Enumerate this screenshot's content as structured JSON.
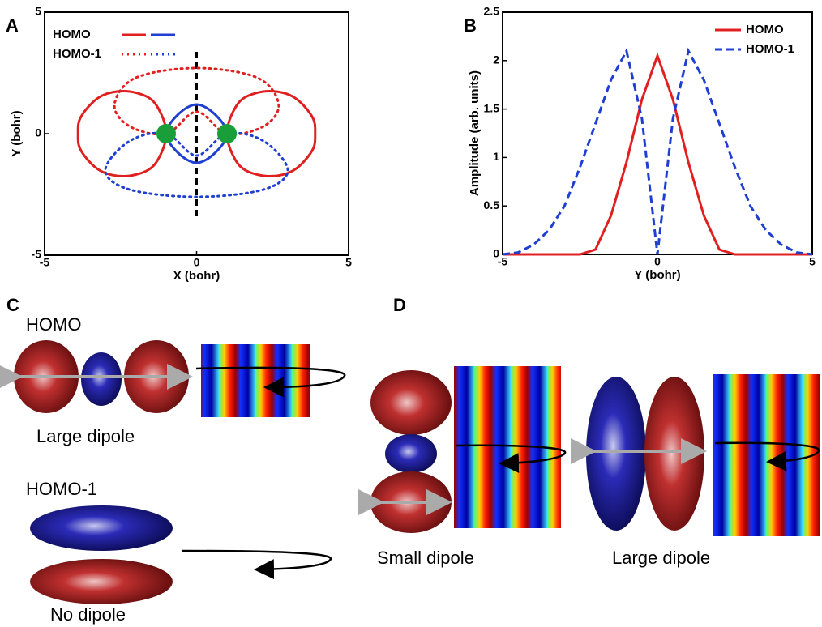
{
  "chart_data": [
    {
      "type": "contour",
      "panel": "A",
      "xlim": [
        -5,
        5
      ],
      "ylim": [
        -5,
        5
      ],
      "xticks": [
        -5,
        0,
        5
      ],
      "yticks": [
        -5,
        0,
        5
      ],
      "xlabel": "X (bohr)",
      "ylabel": "Y (bohr)",
      "series": [
        {
          "name": "HOMO",
          "style": "solid",
          "parts": [
            {
              "color": "#e02020",
              "x": [
                1,
                1.2,
                1.6,
                2.4,
                3.2,
                3.8,
                3.9,
                3.8,
                3.2,
                2.4,
                1.6,
                1.2,
                null,
                -1,
                -1.2,
                -1.6,
                -2.4,
                -3.2,
                -3.8,
                -3.9,
                -3.8,
                -3.2,
                -2.4,
                -1.6,
                -1.2
              ],
              "y": [
                0,
                0.9,
                1.5,
                1.75,
                1.5,
                0.7,
                0,
                -0.7,
                -1.5,
                -1.75,
                -1.5,
                -0.9,
                null,
                0,
                0.9,
                1.5,
                1.75,
                1.5,
                0.7,
                0,
                -0.7,
                -1.5,
                -1.75,
                -1.5,
                -0.9
              ]
            },
            {
              "color": "#1f3fd0",
              "x": [
                -1,
                -0.6,
                0,
                0.6,
                1,
                0.6,
                0,
                -0.6
              ],
              "y": [
                0,
                0.8,
                1.2,
                0.8,
                0,
                -0.8,
                -1.2,
                -0.8
              ]
            }
          ]
        },
        {
          "name": "HOMO-1",
          "style": "dotted",
          "parts": [
            {
              "color": "#e02020",
              "x": [
                -1,
                -2.2,
                -2.7,
                -2,
                0,
                2,
                2.7,
                2.2,
                1,
                0
              ],
              "y": [
                0,
                0.3,
                1.2,
                2.3,
                2.7,
                2.3,
                1.2,
                0.3,
                0,
                0.9
              ]
            },
            {
              "color": "#1f3fd0",
              "x": [
                -1,
                -2.2,
                -3,
                -2.2,
                0,
                2.2,
                3,
                2.2,
                1,
                0
              ],
              "y": [
                0,
                -0.3,
                -1.5,
                -2.3,
                -2.6,
                -2.3,
                -1.5,
                -0.3,
                0,
                -0.9
              ]
            }
          ]
        }
      ],
      "atoms": {
        "x": [
          -1,
          1
        ],
        "y": [
          0,
          0
        ],
        "color": "#1a9e3a"
      },
      "axis_line": {
        "x": [
          0,
          0
        ],
        "y": [
          -3.4,
          3.4
        ]
      }
    },
    {
      "type": "line",
      "panel": "B",
      "xlim": [
        -5,
        5
      ],
      "ylim": [
        0,
        2.5
      ],
      "xticks": [
        -5,
        0,
        5
      ],
      "yticks": [
        0,
        0.5,
        1,
        1.5,
        2,
        2.5
      ],
      "xlabel": "Y (bohr)",
      "ylabel": "Amplitude (arb. units)",
      "x": [
        -5,
        -4.5,
        -4,
        -3.5,
        -3,
        -2.5,
        -2,
        -1.5,
        -1,
        -0.5,
        0,
        0.5,
        1,
        1.5,
        2,
        2.5,
        3,
        3.5,
        4,
        4.5,
        5
      ],
      "series": [
        {
          "name": "HOMO",
          "color": "#e02020",
          "style": "solid",
          "values": [
            0,
            0,
            0,
            0,
            0,
            0,
            0.05,
            0.4,
            0.95,
            1.6,
            2.05,
            1.6,
            0.95,
            0.4,
            0.05,
            0,
            0,
            0,
            0,
            0,
            0
          ]
        },
        {
          "name": "HOMO-1",
          "color": "#1f3fd0",
          "style": "dashed",
          "values": [
            0,
            0.02,
            0.1,
            0.25,
            0.5,
            0.9,
            1.35,
            1.8,
            2.1,
            1.4,
            0,
            1.4,
            2.1,
            1.8,
            1.35,
            0.9,
            0.5,
            0.25,
            0.1,
            0.02,
            0
          ]
        }
      ]
    }
  ],
  "panel_c": {
    "label": "C",
    "homo": "HOMO",
    "homo_caption": "Large dipole",
    "homo1": "HOMO-1",
    "homo1_caption": "No dipole"
  },
  "panel_d": {
    "label": "D",
    "left_caption": "Small dipole",
    "right_caption": "Large dipole"
  }
}
